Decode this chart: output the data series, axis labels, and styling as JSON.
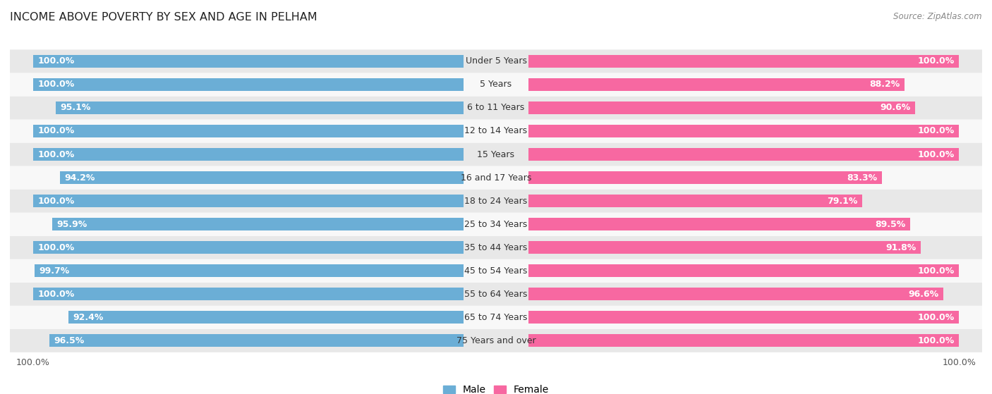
{
  "title": "INCOME ABOVE POVERTY BY SEX AND AGE IN PELHAM",
  "source": "Source: ZipAtlas.com",
  "categories": [
    "Under 5 Years",
    "5 Years",
    "6 to 11 Years",
    "12 to 14 Years",
    "15 Years",
    "16 and 17 Years",
    "18 to 24 Years",
    "25 to 34 Years",
    "35 to 44 Years",
    "45 to 54 Years",
    "55 to 64 Years",
    "65 to 74 Years",
    "75 Years and over"
  ],
  "male_values": [
    100.0,
    100.0,
    95.1,
    100.0,
    100.0,
    94.2,
    100.0,
    95.9,
    100.0,
    99.7,
    100.0,
    92.4,
    96.5
  ],
  "female_values": [
    100.0,
    88.2,
    90.6,
    100.0,
    100.0,
    83.3,
    79.1,
    89.5,
    91.8,
    100.0,
    96.6,
    100.0,
    100.0
  ],
  "male_color": "#6baed6",
  "female_color": "#f768a1",
  "male_label": "Male",
  "female_label": "Female",
  "bg_color": "#ffffff",
  "row_even_color": "#e8e8e8",
  "row_odd_color": "#f8f8f8",
  "label_fontsize": 9.0,
  "title_fontsize": 11.5,
  "legend_fontsize": 10,
  "source_fontsize": 8.5
}
